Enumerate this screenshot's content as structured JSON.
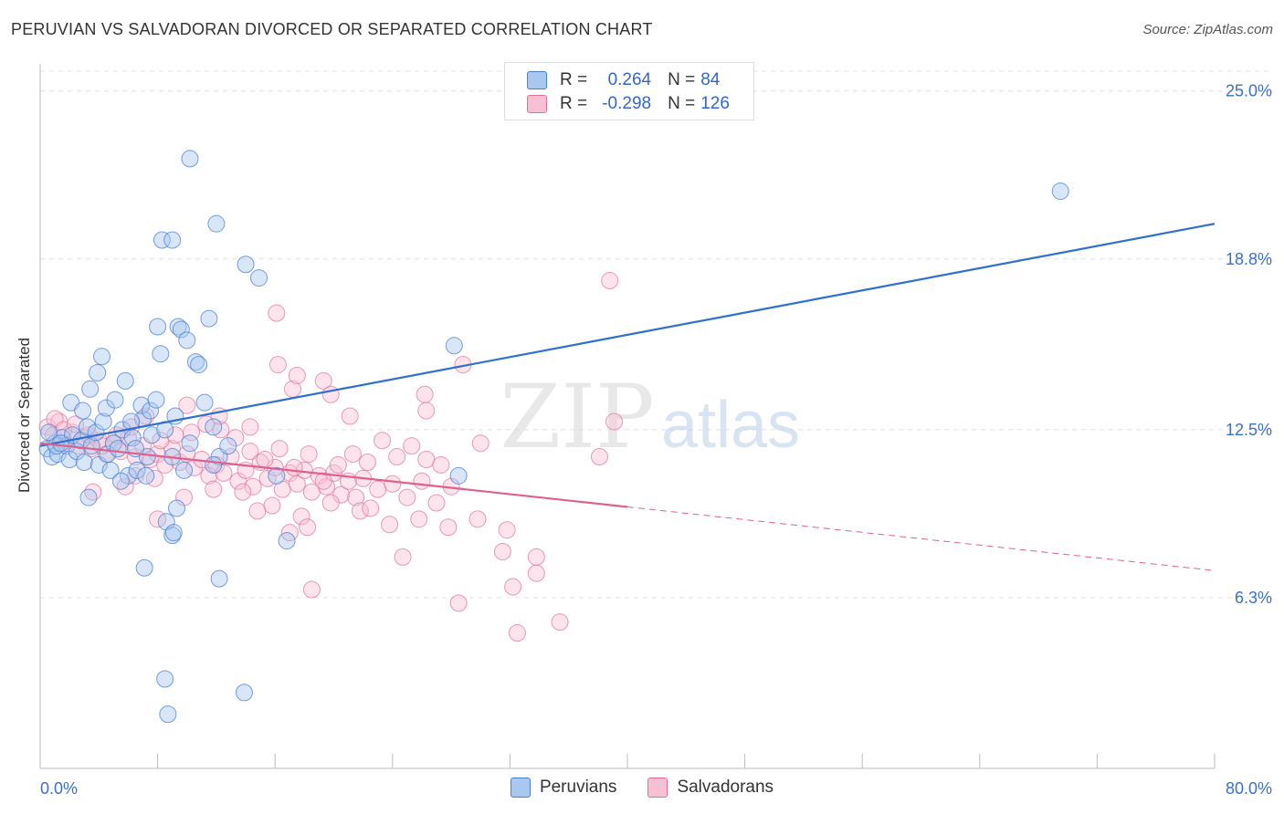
{
  "title": "PERUVIAN VS SALVADORAN DIVORCED OR SEPARATED CORRELATION CHART",
  "source": "Source: ZipAtlas.com",
  "watermark": {
    "zip": "ZIP",
    "atlas": "atlas"
  },
  "legend_box": {
    "rows": [
      {
        "r_label": "R =",
        "r_value": "0.264",
        "n_label": "N =",
        "n_value": "84"
      },
      {
        "r_label": "R =",
        "r_value": "-0.298",
        "n_label": "N =",
        "n_value": "126"
      }
    ]
  },
  "colors": {
    "peruvians_fill": "#a8c8f0",
    "peruvians_stroke": "#4a7fd4",
    "peruvians_line": "#2f6fcf",
    "salvadorans_fill": "#f8c0d4",
    "salvadorans_stroke": "#e07098",
    "salvadorans_line": "#e0608c",
    "tick_label": "#3a70c8",
    "grid": "#e0e0e0"
  },
  "chart_data": {
    "type": "scatter",
    "title": "PERUVIAN VS SALVADORAN DIVORCED OR SEPARATED CORRELATION CHART",
    "xlabel": "",
    "ylabel": "Divorced or Separated",
    "xlim": [
      0,
      80
    ],
    "ylim": [
      0,
      26
    ],
    "x_tick_labels": [
      "0.0%",
      "80.0%"
    ],
    "y_ticks": [
      6.3,
      12.5,
      18.8,
      25.0
    ],
    "y_tick_labels": [
      "6.3%",
      "12.5%",
      "18.8%",
      "25.0%"
    ],
    "grid": true,
    "legend_position": "bottom-center",
    "series": [
      {
        "name": "Peruvians",
        "R": 0.264,
        "N": 84,
        "trend": {
          "x": [
            0,
            80
          ],
          "y": [
            11.9,
            20.1
          ],
          "dashed_from": null
        },
        "points": [
          [
            0.5,
            11.8
          ],
          [
            0.8,
            11.5
          ],
          [
            1.0,
            12.0
          ],
          [
            1.2,
            11.6
          ],
          [
            1.5,
            12.2
          ],
          [
            1.8,
            11.9
          ],
          [
            2.0,
            11.4
          ],
          [
            2.2,
            12.3
          ],
          [
            2.5,
            11.7
          ],
          [
            2.8,
            12.1
          ],
          [
            3.0,
            11.3
          ],
          [
            3.2,
            12.6
          ],
          [
            3.5,
            11.9
          ],
          [
            3.8,
            12.4
          ],
          [
            4.0,
            11.2
          ],
          [
            4.3,
            12.8
          ],
          [
            4.6,
            11.6
          ],
          [
            5.0,
            12.0
          ],
          [
            5.3,
            11.8
          ],
          [
            5.6,
            12.5
          ],
          [
            6.0,
            10.8
          ],
          [
            6.3,
            12.2
          ],
          [
            6.6,
            11.0
          ],
          [
            7.0,
            12.9
          ],
          [
            7.3,
            11.5
          ],
          [
            7.6,
            12.3
          ],
          [
            0.6,
            12.4
          ],
          [
            1.1,
            11.9
          ],
          [
            1.4,
            12.0
          ],
          [
            2.1,
            13.5
          ],
          [
            2.9,
            13.2
          ],
          [
            3.4,
            14.0
          ],
          [
            3.9,
            14.6
          ],
          [
            4.2,
            15.2
          ],
          [
            4.5,
            13.3
          ],
          [
            5.1,
            13.6
          ],
          [
            5.8,
            14.3
          ],
          [
            6.2,
            12.8
          ],
          [
            6.9,
            13.4
          ],
          [
            7.5,
            13.2
          ],
          [
            7.9,
            13.6
          ],
          [
            8.2,
            15.3
          ],
          [
            8.0,
            16.3
          ],
          [
            9.4,
            16.3
          ],
          [
            9.6,
            16.2
          ],
          [
            10.0,
            15.8
          ],
          [
            10.6,
            15.0
          ],
          [
            10.8,
            14.9
          ],
          [
            11.5,
            16.6
          ],
          [
            11.2,
            13.5
          ],
          [
            9.2,
            13.0
          ],
          [
            8.5,
            12.5
          ],
          [
            9.0,
            11.5
          ],
          [
            9.8,
            11.0
          ],
          [
            10.2,
            12.0
          ],
          [
            11.8,
            12.6
          ],
          [
            12.2,
            11.5
          ],
          [
            12.8,
            11.9
          ],
          [
            8.3,
            19.5
          ],
          [
            9.0,
            19.5
          ],
          [
            10.2,
            22.5
          ],
          [
            12.0,
            20.1
          ],
          [
            14.0,
            18.6
          ],
          [
            14.9,
            18.1
          ],
          [
            28.2,
            15.6
          ],
          [
            28.5,
            10.8
          ],
          [
            69.5,
            21.3
          ],
          [
            4.8,
            11.0
          ],
          [
            5.5,
            10.6
          ],
          [
            6.5,
            11.8
          ],
          [
            7.2,
            10.8
          ],
          [
            3.3,
            10.0
          ],
          [
            8.6,
            9.1
          ],
          [
            9.0,
            8.6
          ],
          [
            9.1,
            8.7
          ],
          [
            16.1,
            10.8
          ],
          [
            16.8,
            8.4
          ],
          [
            7.1,
            7.4
          ],
          [
            12.2,
            7.0
          ],
          [
            8.5,
            3.3
          ],
          [
            8.7,
            2.0
          ],
          [
            13.9,
            2.8
          ],
          [
            9.3,
            9.6
          ],
          [
            11.8,
            11.2
          ]
        ]
      },
      {
        "name": "Salvadorans",
        "R": -0.298,
        "N": 126,
        "trend": {
          "x": [
            0,
            80
          ],
          "y": [
            12.0,
            7.3
          ],
          "dashed_from": 40
        },
        "points": [
          [
            0.5,
            12.6
          ],
          [
            0.9,
            12.3
          ],
          [
            1.3,
            12.8
          ],
          [
            1.7,
            12.0
          ],
          [
            2.2,
            12.4
          ],
          [
            2.6,
            11.9
          ],
          [
            3.0,
            12.2
          ],
          [
            3.5,
            11.8
          ],
          [
            4.0,
            12.1
          ],
          [
            4.5,
            11.6
          ],
          [
            5.0,
            12.0
          ],
          [
            5.5,
            11.7
          ],
          [
            6.0,
            12.2
          ],
          [
            6.5,
            11.5
          ],
          [
            7.0,
            11.9
          ],
          [
            7.5,
            11.4
          ],
          [
            8.0,
            11.6
          ],
          [
            8.5,
            11.2
          ],
          [
            9.0,
            11.8
          ],
          [
            9.5,
            11.3
          ],
          [
            10.0,
            11.6
          ],
          [
            10.5,
            11.1
          ],
          [
            11.0,
            11.4
          ],
          [
            11.5,
            10.8
          ],
          [
            12.0,
            11.2
          ],
          [
            12.5,
            10.9
          ],
          [
            13.0,
            11.5
          ],
          [
            13.5,
            10.6
          ],
          [
            14.0,
            11.0
          ],
          [
            14.5,
            10.4
          ],
          [
            15.0,
            11.3
          ],
          [
            15.5,
            10.7
          ],
          [
            16.0,
            11.1
          ],
          [
            16.5,
            10.3
          ],
          [
            17.0,
            10.9
          ],
          [
            17.5,
            10.5
          ],
          [
            18.0,
            11.0
          ],
          [
            18.5,
            10.2
          ],
          [
            19.0,
            10.8
          ],
          [
            19.5,
            10.4
          ],
          [
            20.0,
            10.9
          ],
          [
            20.5,
            10.1
          ],
          [
            21.0,
            10.6
          ],
          [
            21.5,
            10.0
          ],
          [
            22.0,
            10.7
          ],
          [
            23.0,
            10.3
          ],
          [
            24.0,
            10.5
          ],
          [
            25.0,
            10.0
          ],
          [
            26.0,
            10.6
          ],
          [
            27.0,
            9.8
          ],
          [
            28.0,
            10.4
          ],
          [
            1.0,
            12.9
          ],
          [
            1.6,
            12.5
          ],
          [
            2.4,
            12.7
          ],
          [
            3.3,
            12.3
          ],
          [
            4.2,
            11.9
          ],
          [
            5.2,
            12.3
          ],
          [
            6.2,
            12.6
          ],
          [
            7.2,
            13.0
          ],
          [
            8.2,
            12.1
          ],
          [
            9.2,
            12.3
          ],
          [
            10.3,
            12.4
          ],
          [
            11.3,
            12.7
          ],
          [
            12.3,
            12.5
          ],
          [
            13.3,
            12.2
          ],
          [
            14.3,
            11.7
          ],
          [
            15.3,
            11.4
          ],
          [
            16.3,
            11.8
          ],
          [
            17.3,
            11.1
          ],
          [
            18.3,
            11.6
          ],
          [
            19.3,
            10.6
          ],
          [
            20.3,
            11.2
          ],
          [
            21.3,
            11.6
          ],
          [
            22.3,
            11.3
          ],
          [
            23.3,
            12.1
          ],
          [
            24.3,
            11.5
          ],
          [
            25.3,
            11.9
          ],
          [
            26.3,
            11.4
          ],
          [
            27.3,
            11.2
          ],
          [
            3.6,
            10.2
          ],
          [
            5.8,
            10.4
          ],
          [
            7.8,
            10.7
          ],
          [
            9.8,
            10.0
          ],
          [
            11.8,
            10.3
          ],
          [
            13.8,
            10.2
          ],
          [
            15.8,
            9.7
          ],
          [
            17.8,
            9.3
          ],
          [
            19.8,
            9.8
          ],
          [
            21.8,
            9.5
          ],
          [
            23.8,
            9.0
          ],
          [
            25.8,
            9.2
          ],
          [
            27.8,
            8.9
          ],
          [
            29.8,
            9.2
          ],
          [
            31.8,
            8.8
          ],
          [
            10.0,
            13.4
          ],
          [
            12.2,
            13.0
          ],
          [
            14.3,
            12.6
          ],
          [
            16.1,
            16.8
          ],
          [
            16.2,
            14.9
          ],
          [
            17.2,
            14.0
          ],
          [
            17.5,
            14.5
          ],
          [
            19.3,
            14.3
          ],
          [
            19.8,
            13.8
          ],
          [
            21.1,
            13.0
          ],
          [
            26.2,
            13.8
          ],
          [
            26.3,
            13.2
          ],
          [
            28.8,
            14.9
          ],
          [
            30.0,
            12.0
          ],
          [
            31.5,
            8.0
          ],
          [
            33.8,
            7.8
          ],
          [
            33.8,
            7.2
          ],
          [
            32.2,
            6.7
          ],
          [
            28.5,
            6.1
          ],
          [
            35.4,
            5.4
          ],
          [
            32.5,
            5.0
          ],
          [
            39.1,
            12.8
          ],
          [
            38.1,
            11.5
          ],
          [
            38.8,
            18.0
          ],
          [
            18.5,
            6.6
          ],
          [
            17.0,
            8.7
          ],
          [
            18.2,
            8.9
          ],
          [
            8.0,
            9.2
          ],
          [
            6.5,
            10.8
          ],
          [
            14.8,
            9.5
          ],
          [
            22.5,
            9.6
          ],
          [
            24.7,
            7.8
          ]
        ]
      }
    ]
  }
}
